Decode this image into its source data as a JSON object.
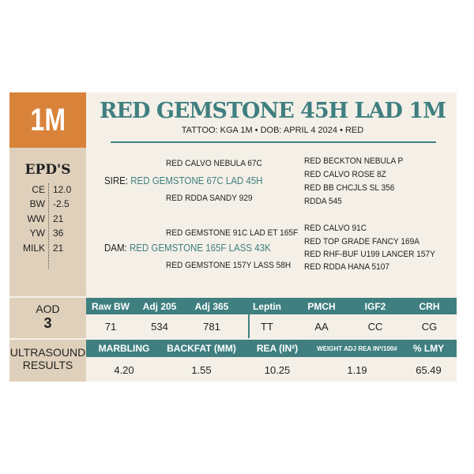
{
  "lot": "1M",
  "title": "RED GEMSTONE 45H LAD 1M",
  "subtitle": "TATTOO: KGA 1M • DOB: APRIL 4 2024 • RED",
  "epd": {
    "title": "EPD'S",
    "rows": [
      {
        "k": "CE",
        "v": "12.0"
      },
      {
        "k": "BW",
        "v": "-2.5"
      },
      {
        "k": "WW",
        "v": "21"
      },
      {
        "k": "YW",
        "v": "36"
      },
      {
        "k": "MILK",
        "v": "21"
      }
    ]
  },
  "pedigree": {
    "sire_label": "SIRE:",
    "sire": "RED GEMSTONE 67C LAD 45H",
    "sire_sire": "RED CALVO NEBULA 67C",
    "sire_dam": "RED RDDA SANDY 929",
    "sire_right": [
      "RED BECKTON NEBULA P",
      "RED CALVO ROSE 8Z",
      "RED BB CHCJLS SL 356",
      "RDDA 545"
    ],
    "dam_label": "DAM:",
    "dam": "RED GEMSTONE 165F LASS 43K",
    "dam_sire": "RED GEMSTONE 91C LAD ET 165F",
    "dam_dam": "RED GEMSTONE 157Y LASS 58H",
    "dam_right": [
      "RED CALVO 91C",
      "RED TOP GRADE FANCY 169A",
      "RED RHF-BUF U199 LANCER 157Y",
      "RED RDDA HANA 5107"
    ]
  },
  "aod": {
    "label": "AOD",
    "value": "3"
  },
  "weights": {
    "headers": [
      "Raw BW",
      "Adj 205",
      "Adj 365",
      "Leptin",
      "PMCH",
      "IGF2",
      "CRH"
    ],
    "values": [
      "71",
      "534",
      "781",
      "TT",
      "AA",
      "CC",
      "CG"
    ]
  },
  "ultrasound": {
    "label1": "ULTRASOUND",
    "label2": "RESULTS",
    "headers": [
      "MARBLING",
      "BACKFAT (MM)",
      "REA (IN²)",
      "WEIGHT ADJ REA IN²/100#",
      "% LMY"
    ],
    "values": [
      "4.20",
      "1.55",
      "10.25",
      "1.19",
      "65.49"
    ]
  },
  "colors": {
    "teal": "#3f7f80",
    "orange": "#d9833a",
    "tan": "#dfd0bb"
  }
}
